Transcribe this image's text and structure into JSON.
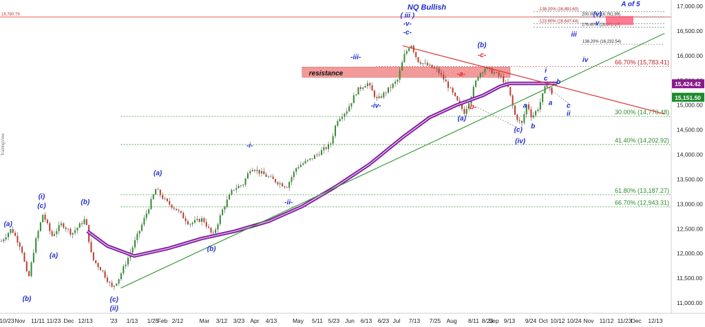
{
  "chart_data": {
    "type": "candlestick",
    "title": "NQ Bullish",
    "corner_label": "A of 5",
    "side_watermark": "TradingView",
    "ylim": [
      10950,
      17100
    ],
    "x_ticks": [
      "10/23",
      "Nov",
      "11/11",
      "11/23",
      "Dec",
      "12/13",
      "'23",
      "1/13",
      "1/25",
      "Feb",
      "2/12",
      "Mar",
      "3/12",
      "3/23",
      "Apr",
      "4/13",
      "May",
      "5/11",
      "5/23",
      "Jun",
      "6/13",
      "6/23",
      "Jul",
      "7/13",
      "7/25",
      "Aug",
      "8/11",
      "8/23",
      "Sep",
      "9/13",
      "9/24",
      "Oct",
      "10/12",
      "10/24",
      "Nov",
      "11/12",
      "11/23",
      "Dec",
      "12/13"
    ],
    "y_ticks": [
      11000,
      11500,
      12000,
      12500,
      13000,
      13500,
      14000,
      14500,
      15000,
      15500,
      16000,
      16500,
      17000
    ],
    "price_labels": [
      {
        "text": "15,424.42",
        "value": 15424.42,
        "color": "#8a1a8a"
      },
      {
        "text": "15,151.50",
        "value": 15151.5,
        "color": "#1d8a2e"
      }
    ],
    "top_left_level": {
      "text": "16,780.79",
      "value": 16780.79
    },
    "resistance_box": {
      "label": "resistance",
      "low": 15560,
      "high": 15770,
      "x_from": 0.45,
      "x_to": 0.76
    },
    "fib_levels": [
      {
        "label": "66.70% (15,783.41)",
        "value": 15783.41,
        "color": "red"
      },
      {
        "label": "30.00% (14,770.48)",
        "value": 14770.48,
        "color": "green"
      },
      {
        "label": "41.40% (14,202.92)",
        "value": 14202.92,
        "color": "green"
      },
      {
        "label": "61.80% (13,187.27)",
        "value": 13187.27,
        "color": "green"
      },
      {
        "label": "66.70% (12,943.31)",
        "value": 12943.31,
        "color": "green"
      }
    ],
    "upper_fibs": [
      {
        "label": "-138.20% (16,891.60)",
        "value": 16891.6
      },
      {
        "label": "200.00% (16,781.99)",
        "value": 16781.99
      },
      {
        "label": "-123.60% (16,647.44)",
        "value": 16647.44
      },
      {
        "label": "176.40% (16,572.17)",
        "value": 16572.17
      },
      {
        "label": "138.20% (16,232.54)",
        "value": 16232.54
      }
    ],
    "wave_labels": [
      {
        "text": "(a)",
        "x": 0.012,
        "value": 12550,
        "color": "blue"
      },
      {
        "text": "(b)",
        "x": 0.04,
        "value": 11040,
        "color": "blue"
      },
      {
        "text": "(i)",
        "x": 0.062,
        "value": 13110,
        "color": "blue"
      },
      {
        "text": "(c)",
        "x": 0.062,
        "value": 12920,
        "color": "blue"
      },
      {
        "text": "(a)",
        "x": 0.08,
        "value": 11920,
        "color": "blue"
      },
      {
        "text": "(b)",
        "x": 0.127,
        "value": 13000,
        "color": "blue"
      },
      {
        "text": "(c)",
        "x": 0.17,
        "value": 11030,
        "color": "blue"
      },
      {
        "text": "(ii)",
        "x": 0.17,
        "value": 10850,
        "color": "blue"
      },
      {
        "text": "(a)",
        "x": 0.235,
        "value": 13580,
        "color": "blue"
      },
      {
        "text": "(b)",
        "x": 0.315,
        "value": 12050,
        "color": "blue"
      },
      {
        "text": "-i-",
        "x": 0.372,
        "value": 14140,
        "color": "blue"
      },
      {
        "text": "-ii-",
        "x": 0.43,
        "value": 12990,
        "color": "blue"
      },
      {
        "text": "-iii-",
        "x": 0.53,
        "value": 15930,
        "color": "blue"
      },
      {
        "text": "-iv-",
        "x": 0.56,
        "value": 14950,
        "color": "blue"
      },
      {
        "text": "( iii )",
        "x": 0.607,
        "value": 16770,
        "color": "blue"
      },
      {
        "text": "-v-",
        "x": 0.607,
        "value": 16600,
        "color": "blue"
      },
      {
        "text": "-c-",
        "x": 0.607,
        "value": 16430,
        "color": "blue"
      },
      {
        "text": "-a-",
        "x": 0.687,
        "value": 15590,
        "color": "red"
      },
      {
        "text": "-b-",
        "x": 0.703,
        "value": 14920,
        "color": "red"
      },
      {
        "text": "(a)",
        "x": 0.688,
        "value": 14690,
        "color": "blue"
      },
      {
        "text": "(b)",
        "x": 0.718,
        "value": 16170,
        "color": "blue"
      },
      {
        "text": "-c-",
        "x": 0.718,
        "value": 15970,
        "color": "red"
      },
      {
        "text": "a",
        "x": 0.782,
        "value": 14950,
        "color": "blue"
      },
      {
        "text": "b",
        "x": 0.794,
        "value": 14530,
        "color": "blue"
      },
      {
        "text": "(c)",
        "x": 0.772,
        "value": 14460,
        "color": "blue"
      },
      {
        "text": "(iv)",
        "x": 0.775,
        "value": 14230,
        "color": "blue"
      },
      {
        "text": "i",
        "x": 0.813,
        "value": 15660,
        "color": "blue"
      },
      {
        "text": "c",
        "x": 0.813,
        "value": 15500,
        "color": "blue"
      },
      {
        "text": "b",
        "x": 0.832,
        "value": 15430,
        "color": "blue"
      },
      {
        "text": "a",
        "x": 0.82,
        "value": 15000,
        "color": "blue"
      },
      {
        "text": "c",
        "x": 0.847,
        "value": 14950,
        "color": "blue"
      },
      {
        "text": "ii",
        "x": 0.847,
        "value": 14790,
        "color": "blue"
      },
      {
        "text": "iv",
        "x": 0.872,
        "value": 15870,
        "color": "blue"
      },
      {
        "text": "iii",
        "x": 0.855,
        "value": 16390,
        "color": "blue"
      },
      {
        "text": "(v)",
        "x": 0.89,
        "value": 16800,
        "color": "blue"
      },
      {
        "text": "v",
        "x": 0.89,
        "value": 16620,
        "color": "blue"
      }
    ]
  }
}
